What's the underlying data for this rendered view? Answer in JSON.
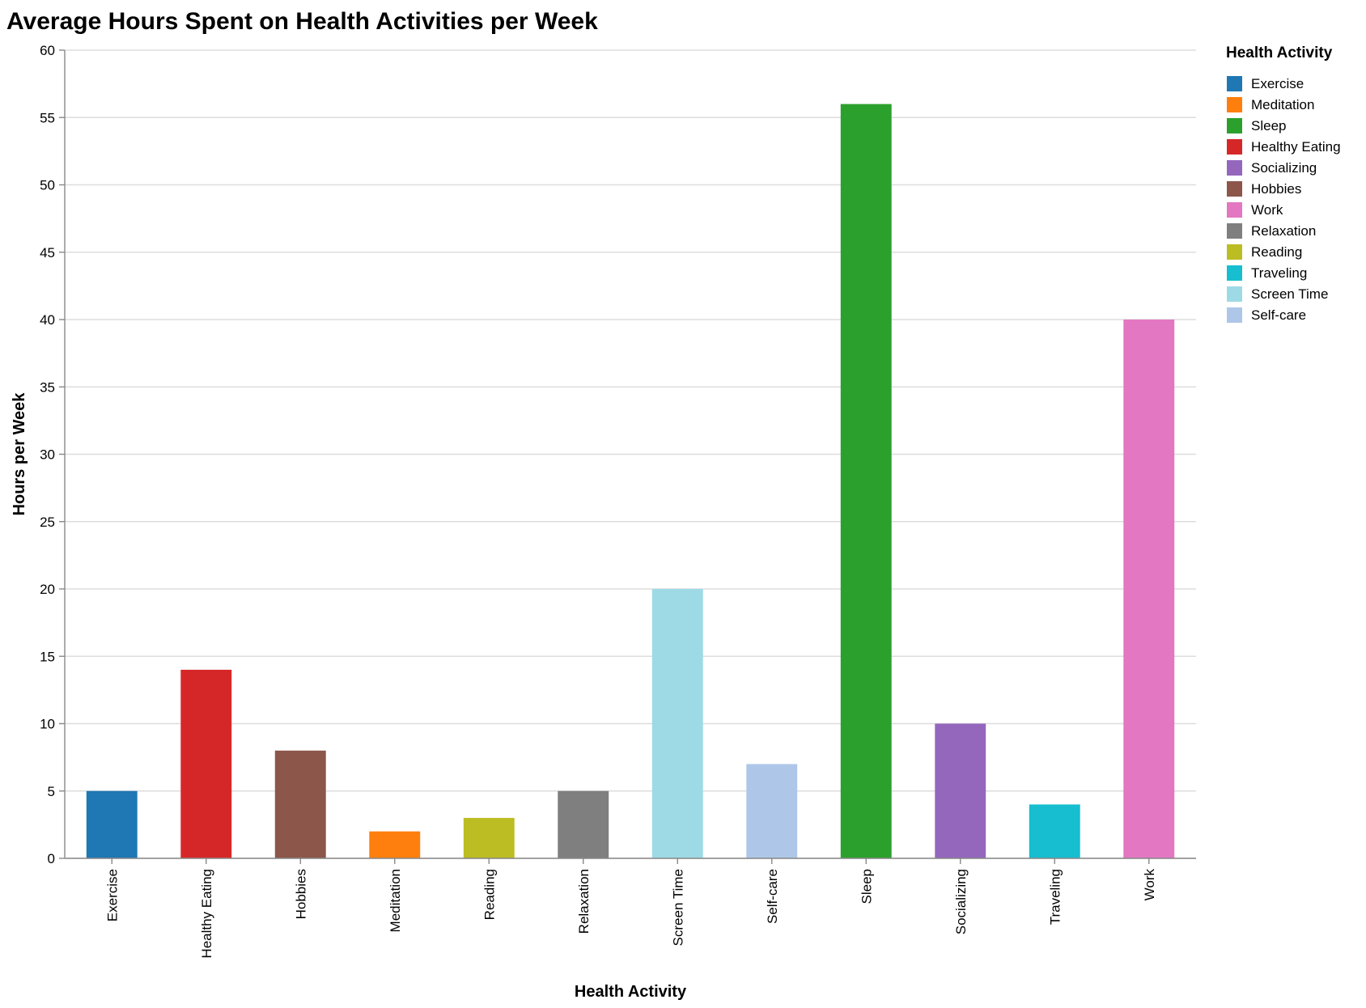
{
  "chart_data": {
    "type": "bar",
    "title": "Average Hours Spent on Health Activities per Week",
    "xlabel": "Health Activity",
    "ylabel": "Hours per Week",
    "ylim": [
      0,
      60
    ],
    "yticks": [
      0,
      5,
      10,
      15,
      20,
      25,
      30,
      35,
      40,
      45,
      50,
      55,
      60
    ],
    "grid": true,
    "legend": {
      "title": "Health Activity",
      "placement": "right",
      "order": [
        "Exercise",
        "Meditation",
        "Sleep",
        "Healthy Eating",
        "Socializing",
        "Hobbies",
        "Work",
        "Relaxation",
        "Reading",
        "Traveling",
        "Screen Time",
        "Self-care"
      ]
    },
    "categories": [
      "Exercise",
      "Healthy Eating",
      "Hobbies",
      "Meditation",
      "Reading",
      "Relaxation",
      "Screen Time",
      "Self-care",
      "Sleep",
      "Socializing",
      "Traveling",
      "Work"
    ],
    "values": [
      5,
      14,
      8,
      2,
      3,
      5,
      20,
      7,
      56,
      10,
      4,
      40
    ],
    "colors": {
      "Exercise": "#1f77b4",
      "Meditation": "#ff7f0e",
      "Sleep": "#2ca02c",
      "Healthy Eating": "#d62728",
      "Socializing": "#9467bd",
      "Hobbies": "#8c564b",
      "Work": "#e377c2",
      "Relaxation": "#7f7f7f",
      "Reading": "#bcbd22",
      "Traveling": "#17becf",
      "Screen Time": "#9edae5",
      "Self-care": "#aec7e8"
    }
  }
}
